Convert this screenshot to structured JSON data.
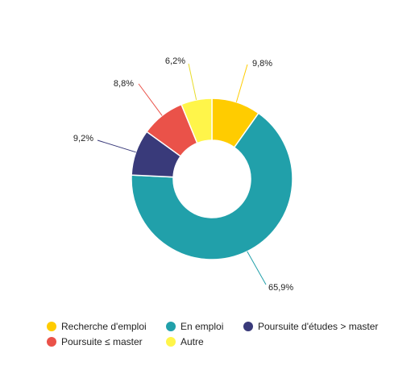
{
  "chart_data": {
    "type": "pie",
    "variant": "donut",
    "categories": [
      "Recherche d'emploi",
      "En emploi",
      "Poursuite d'études > master",
      "Poursuite ≤ master",
      "Autre"
    ],
    "values": [
      9.8,
      65.9,
      9.2,
      8.8,
      6.2
    ],
    "value_labels": [
      "9,8%",
      "65,9%",
      "9,2%",
      "8,8%",
      "6,2%"
    ],
    "colors": [
      "#FFCC00",
      "#21A0AA",
      "#393A7A",
      "#EA5249",
      "#FFF54A"
    ],
    "legend_position": "bottom"
  }
}
